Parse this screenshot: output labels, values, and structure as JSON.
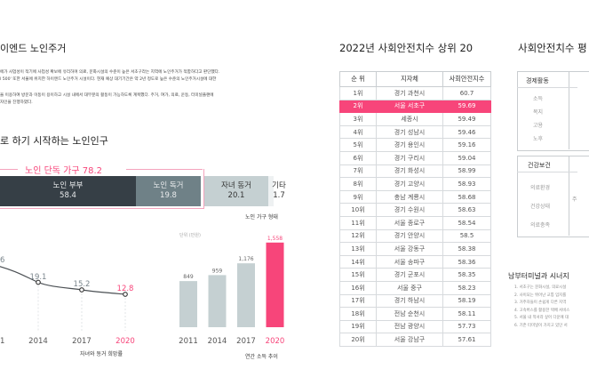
{
  "left": {
    "title": "이엔드 노인주거",
    "paragraphs": [
      "에가 사업성이 적기에 사업성 확보에 유리하며 의료, 문화시설의 수준이 높은 서초구라는 지역에 노인주거가 적합하다고 판단했다.",
      "l 500' 또한 서울에 위치한 하이엔드 노인주거 시설이다. 현재 예상 대기기간은 약 2년 정도로 높은 수준의 노인주거시설에 대한",
      "을 이용하여 방문과 이동이 용이하고 시설 내에서 대부분의 활동이 가능하도록 계획했다. 주거, 여가, 의료, 운동, 터미널플랜에",
      "자인을 진행하였다."
    ],
    "section_title": "로 하기 시작하는 노인인구",
    "household": {
      "bracket_label": "노인 단독 가구 78.2",
      "segments": [
        {
          "label": "노인 부부",
          "value": "58.4",
          "color": "#363f46",
          "text_color": "#e8eaec"
        },
        {
          "label": "노인 독거",
          "value": "19.8",
          "color": "#6f8187",
          "text_color": "#e8eaec"
        },
        {
          "label": "자녀 동거",
          "value": "20.1",
          "color": "#c5d0d2",
          "text_color": "#333333"
        },
        {
          "label": "기타",
          "value": "1.7",
          "color": "#eef1f2",
          "text_color": "#333333"
        }
      ],
      "caption": "노인 가구 형태"
    }
  },
  "chart_data": [
    {
      "type": "line",
      "title": "자녀와 동거 희망률",
      "x": [
        "2011",
        "2014",
        "2017",
        "2020"
      ],
      "values": [
        null,
        19.1,
        15.2,
        12.8
      ],
      "partial_labels": {
        "first_value_fragment": "6",
        "first_x_fragment": "1"
      },
      "highlight_index": 3,
      "highlight_color": "#f7457a",
      "line_color": "#4a4f53"
    },
    {
      "type": "bar",
      "title": "연간 소득 추이",
      "unit_label": "단위 (만원)",
      "categories": [
        "2011",
        "2014",
        "2017",
        "2020"
      ],
      "values": [
        849,
        959,
        1176,
        1558
      ],
      "value_labels": [
        "849",
        "959",
        "1,176",
        "1,558"
      ],
      "highlight_index": 3,
      "bar_color": "#c5d0d2",
      "highlight_color": "#f7457a",
      "ylim": [
        0,
        1700
      ]
    }
  ],
  "table": {
    "title": "2022년 사회안전치수 상위 20",
    "headers": [
      "순 위",
      "지자체",
      "사회안전지수"
    ],
    "highlight_row": 1,
    "rows": [
      [
        "1위",
        "경기 과천시",
        "60.7"
      ],
      [
        "2위",
        "서울 서초구",
        "59.69"
      ],
      [
        "3위",
        "세종시",
        "59.49"
      ],
      [
        "4위",
        "경기 성남시",
        "59.46"
      ],
      [
        "5위",
        "경기 용인시",
        "59.16"
      ],
      [
        "6위",
        "경기 구리시",
        "59.04"
      ],
      [
        "7위",
        "경기 화성시",
        "58.99"
      ],
      [
        "8위",
        "경기 고양시",
        "58.93"
      ],
      [
        "9위",
        "충남 계룡시",
        "58.68"
      ],
      [
        "10위",
        "경기 수원시",
        "58.63"
      ],
      [
        "11위",
        "서울 종로구",
        "58.54"
      ],
      [
        "12위",
        "경기 안양시",
        "58.5"
      ],
      [
        "13위",
        "서울 강동구",
        "58.38"
      ],
      [
        "14위",
        "서울 송파구",
        "58.36"
      ],
      [
        "15위",
        "경기 군포시",
        "58.35"
      ],
      [
        "16위",
        "서울 중구",
        "58.23"
      ],
      [
        "17위",
        "경기 하남시",
        "58.19"
      ],
      [
        "18위",
        "전남 순천시",
        "58.11"
      ],
      [
        "19위",
        "전남 광양시",
        "57.73"
      ],
      [
        "20위",
        "서울 강남구",
        "57.61"
      ]
    ]
  },
  "right": {
    "title": "사회안전치수 평",
    "groups": [
      {
        "category": "경제활동",
        "items": [
          "소득",
          "복지",
          "고용",
          "노후"
        ]
      },
      {
        "category": "건강보건",
        "items": [
          "의료환경",
          "건강상태",
          "의료충족"
        ],
        "side_fragment": "주"
      }
    ],
    "synergy_title": "남부터미널과 시너지",
    "synergy_list": [
      "1. 서초구는 문화시설, 의료시설",
      "2. 사이되는 뛰어난 교통 입지를",
      "3. 거주자들이 손쉽게 다른 지역",
      "4. 고속버스를 활용한 택배 서비스",
      "5. 서울 내 적셔라 싶어 다운에 대",
      "6. 기존 터미널이 가지고 있던 서"
    ]
  }
}
